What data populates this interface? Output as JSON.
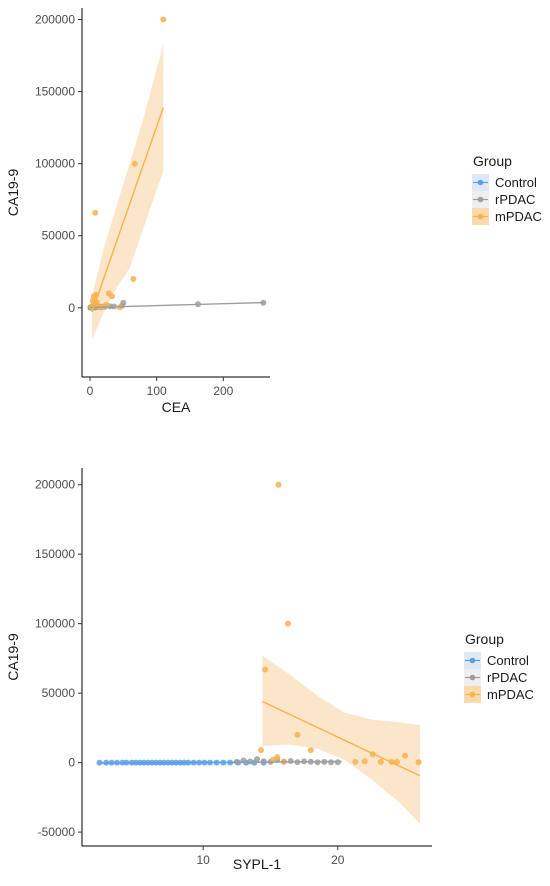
{
  "colors": {
    "Control": "#5aa0e8",
    "rPDAC": "#9e9e9e",
    "mPDAC": "#f5b24f",
    "mPDAC_band": "#fbd9ac",
    "legend_key_bg": "#dfe9f5"
  },
  "chart_data": [
    {
      "type": "scatter",
      "xlabel": "CEA",
      "ylabel": "CA19-9",
      "xlim": [
        -12,
        270
      ],
      "ylim": [
        -48000,
        208000
      ],
      "xticks": [
        0,
        100,
        200
      ],
      "xtick_labels": [
        "0",
        "100",
        "200"
      ],
      "yticks": [
        0,
        50000,
        100000,
        150000,
        200000
      ],
      "ytick_labels": [
        "0",
        "50000",
        "100000",
        "150000",
        "200000"
      ],
      "grid": false,
      "legend": {
        "title": "Group",
        "placement": "right",
        "entries": [
          "Control",
          "rPDAC",
          "mPDAC"
        ]
      },
      "series": [
        {
          "name": "rPDAC",
          "points": [
            [
              0.5,
              100
            ],
            [
              1,
              300
            ],
            [
              1.5,
              200
            ],
            [
              2,
              500
            ],
            [
              2.5,
              150
            ],
            [
              3,
              600
            ],
            [
              3.5,
              250
            ],
            [
              4,
              800
            ],
            [
              4.5,
              350
            ],
            [
              5,
              700
            ],
            [
              6,
              300
            ],
            [
              7,
              900
            ],
            [
              8,
              400
            ],
            [
              9,
              1200
            ],
            [
              10,
              500
            ],
            [
              11,
              800
            ],
            [
              12,
              600
            ],
            [
              14,
              900
            ],
            [
              16,
              400
            ],
            [
              19,
              700
            ],
            [
              22,
              800
            ],
            [
              30,
              1000
            ],
            [
              36,
              900
            ],
            [
              48,
              1500
            ],
            [
              50,
              3500
            ],
            [
              162,
              2500
            ],
            [
              260,
              3500
            ]
          ],
          "fit": {
            "x": [
              0,
              262
            ],
            "y": [
              200,
              3700
            ]
          }
        },
        {
          "name": "mPDAC",
          "points": [
            [
              3,
              500
            ],
            [
              4,
              5000
            ],
            [
              5,
              2000
            ],
            [
              6,
              8000
            ],
            [
              7,
              3000
            ],
            [
              8,
              66000
            ],
            [
              9,
              9000
            ],
            [
              10,
              4000
            ],
            [
              12,
              1000
            ],
            [
              15,
              500
            ],
            [
              20,
              1000
            ],
            [
              25,
              2000
            ],
            [
              28,
              10000
            ],
            [
              33,
              8000
            ],
            [
              45,
              400
            ],
            [
              65,
              20000
            ],
            [
              67,
              100000
            ],
            [
              110,
              200000
            ]
          ],
          "fit": {
            "x": [
              3,
              110
            ],
            "y": [
              -3000,
              139000
            ]
          },
          "band": {
            "x": [
              3,
              20,
              40,
              60,
              80,
              110
            ],
            "upper": [
              8000,
              40000,
              71000,
              101000,
              131000,
              183000
            ],
            "lower": [
              -22000,
              -4000,
              14000,
              28000,
              55000,
              95000
            ]
          }
        }
      ]
    },
    {
      "type": "scatter",
      "xlabel": "SYPL-1",
      "ylabel": "CA19-9",
      "xlim": [
        1,
        27
      ],
      "ylim": [
        -60000,
        212000
      ],
      "xticks": [
        10,
        20
      ],
      "xtick_labels": [
        "10",
        "20"
      ],
      "yticks": [
        -50000,
        0,
        50000,
        100000,
        150000,
        200000
      ],
      "ytick_labels": [
        "-50000",
        "0",
        "50000",
        "100000",
        "150000",
        "200000"
      ],
      "grid": false,
      "legend": {
        "title": "Group",
        "placement": "right",
        "entries": [
          "Control",
          "rPDAC",
          "mPDAC"
        ]
      },
      "series": [
        {
          "name": "Control",
          "points": [
            [
              2.3,
              0
            ],
            [
              2.8,
              0
            ],
            [
              3.2,
              0
            ],
            [
              3.6,
              0
            ],
            [
              4.0,
              0
            ],
            [
              4.3,
              0
            ],
            [
              4.7,
              0
            ],
            [
              5.0,
              0
            ],
            [
              5.3,
              0
            ],
            [
              5.6,
              0
            ],
            [
              5.9,
              0
            ],
            [
              6.2,
              0
            ],
            [
              6.5,
              0
            ],
            [
              6.8,
              0
            ],
            [
              7.1,
              0
            ],
            [
              7.4,
              0
            ],
            [
              7.7,
              0
            ],
            [
              8.0,
              0
            ],
            [
              8.3,
              0
            ],
            [
              8.6,
              0
            ],
            [
              8.9,
              0
            ],
            [
              9.3,
              0
            ],
            [
              9.7,
              0
            ],
            [
              10.1,
              0
            ],
            [
              10.5,
              0
            ],
            [
              11.0,
              0
            ],
            [
              11.5,
              0
            ],
            [
              12.0,
              0
            ],
            [
              12.6,
              0
            ],
            [
              13.2,
              0
            ],
            [
              13.8,
              0
            ],
            [
              14.5,
              0
            ]
          ],
          "fit": {
            "x": [
              2.3,
              15
            ],
            "y": [
              -300,
              300
            ]
          }
        },
        {
          "name": "rPDAC",
          "points": [
            [
              12.5,
              500
            ],
            [
              13.0,
              1500
            ],
            [
              13.5,
              800
            ],
            [
              14.0,
              2500
            ],
            [
              14.5,
              1000
            ],
            [
              15.0,
              500
            ],
            [
              15.5,
              2000
            ],
            [
              16.0,
              700
            ],
            [
              16.5,
              1200
            ],
            [
              17.0,
              400
            ],
            [
              17.5,
              900
            ],
            [
              18.0,
              600
            ],
            [
              18.5,
              300
            ],
            [
              19.0,
              500
            ],
            [
              19.5,
              300
            ],
            [
              20.0,
              200
            ]
          ],
          "fit": {
            "x": [
              12.5,
              20.3
            ],
            "y": [
              200,
              800
            ]
          }
        },
        {
          "name": "mPDAC",
          "points": [
            [
              14.3,
              9000
            ],
            [
              14.6,
              67000
            ],
            [
              15.2,
              2000
            ],
            [
              15.5,
              4000
            ],
            [
              15.6,
              200000
            ],
            [
              16.0,
              500
            ],
            [
              16.3,
              100000
            ],
            [
              17.0,
              20000
            ],
            [
              18.0,
              9000
            ],
            [
              21.3,
              500
            ],
            [
              22.0,
              1000
            ],
            [
              22.6,
              6000
            ],
            [
              23.2,
              500
            ],
            [
              24.0,
              500
            ],
            [
              24.4,
              500
            ],
            [
              25.0,
              5000
            ],
            [
              26.0,
              200
            ]
          ],
          "fit": {
            "x": [
              14.4,
              26.1
            ],
            "y": [
              44000,
              -9500
            ]
          },
          "band": {
            "x": [
              14.4,
              16.5,
              18.5,
              20.5,
              22.5,
              24.5,
              26.1
            ],
            "upper": [
              77000,
              63000,
              48000,
              36000,
              31000,
              29000,
              27000
            ],
            "lower": [
              12000,
              13000,
              10000,
              2000,
              -12000,
              -28000,
              -44000
            ]
          }
        }
      ]
    }
  ]
}
